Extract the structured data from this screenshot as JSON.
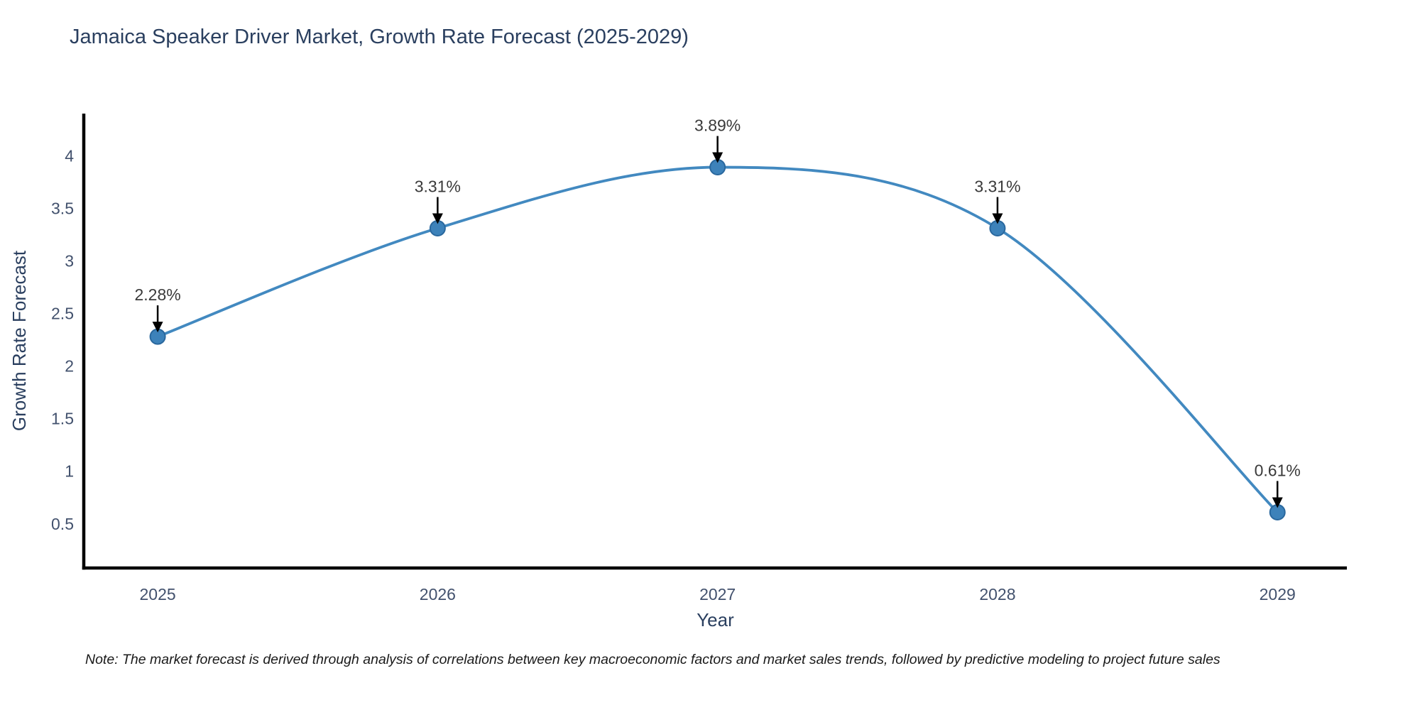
{
  "chart_data": {
    "type": "line",
    "title": "Jamaica Speaker Driver Market, Growth Rate Forecast (2025-2029)",
    "xlabel": "Year",
    "ylabel": "Growth Rate Forecast",
    "x": [
      2025,
      2026,
      2027,
      2028,
      2029
    ],
    "values": [
      2.28,
      3.31,
      3.89,
      3.31,
      0.61
    ],
    "point_labels": [
      "2.28%",
      "3.31%",
      "3.89%",
      "3.31%",
      "0.61%"
    ],
    "series": [
      {
        "name": "Growth Rate Forecast",
        "values": [
          2.28,
          3.31,
          3.89,
          3.31,
          0.61
        ]
      }
    ],
    "x_ticks": [
      "2025",
      "2026",
      "2027",
      "2028",
      "2029"
    ],
    "y_ticks": [
      0.5,
      1,
      1.5,
      2,
      2.5,
      3,
      3.5,
      4
    ],
    "xlim": [
      2024.736,
      2029.248
    ],
    "ylim": [
      0.08,
      4.4
    ],
    "line_shape": "spline",
    "grid": false,
    "legend": "none",
    "colors": {
      "line": "#4289c0",
      "marker_fill": "#3d82ba",
      "marker_edge": "#2a689e",
      "annotation_text": "#3a3a3a",
      "arrow": "#000000",
      "axis_line": "#000000",
      "tick_label": "#42516d",
      "title": "#2a3f5f"
    }
  },
  "note": {
    "text": "Note: The market forecast is derived through analysis of correlations between key macroeconomic factors and market sales trends, followed by predictive modeling to project future sales"
  }
}
